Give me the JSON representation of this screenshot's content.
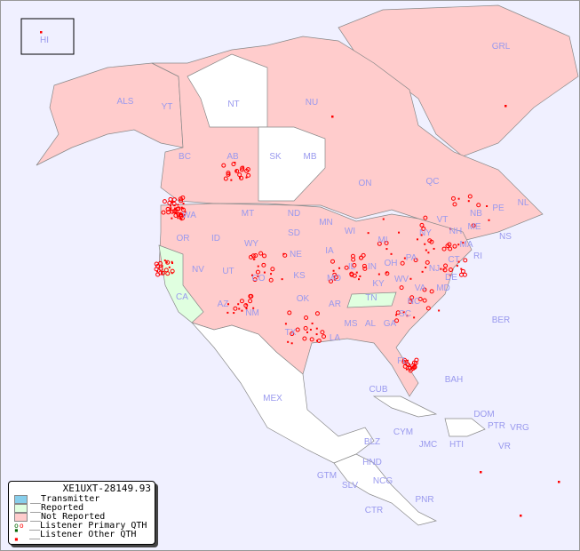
{
  "legend": {
    "title": "XE1UXT-28149.93",
    "items": [
      {
        "label": "__Transmitter",
        "color": "#87ceeb"
      },
      {
        "label": "__Reported",
        "color": "#e0ffe0"
      },
      {
        "label": "__Not Reported",
        "color": "#ffcccc"
      },
      {
        "label": "__Listener Primary QTH",
        "colors": [
          "#006600",
          "#ff0000"
        ]
      },
      {
        "label": "__Listener Other QTH",
        "colors": [
          "#006600",
          "#ff0000"
        ]
      }
    ]
  },
  "colors": {
    "not_reported": "#ffcccc",
    "reported": "#e0ffe0",
    "none": "#ffffff",
    "ocean": "#f0f0ff",
    "label": "#9999ee",
    "marker": "#ff0000"
  },
  "region_labels": [
    "HI",
    "ALS",
    "YT",
    "NT",
    "NU",
    "GRL",
    "BC",
    "AB",
    "SK",
    "MB",
    "ON",
    "QC",
    "NL",
    "NB",
    "NS",
    "PE",
    "WA",
    "OR",
    "ID",
    "MT",
    "ND",
    "SD",
    "MN",
    "WI",
    "MI",
    "NY",
    "VT",
    "NH",
    "ME",
    "MA",
    "CT",
    "RI",
    "NJ",
    "PA",
    "OH",
    "IN",
    "IL",
    "IA",
    "NE",
    "WY",
    "NV",
    "CA",
    "UT",
    "CO",
    "KS",
    "MO",
    "KY",
    "WV",
    "VA",
    "MD",
    "DE",
    "TN",
    "NC",
    "SC",
    "GA",
    "AL",
    "MS",
    "AR",
    "OK",
    "TX",
    "LA",
    "FL",
    "NM",
    "AZ",
    "MEX",
    "BER",
    "BAH",
    "CUB",
    "CYM",
    "JMC",
    "HTI",
    "DOM",
    "PTR",
    "VRG",
    "VR",
    "BLZ",
    "HND",
    "GTM",
    "SLV",
    "NCG",
    "CTR",
    "PNR"
  ]
}
